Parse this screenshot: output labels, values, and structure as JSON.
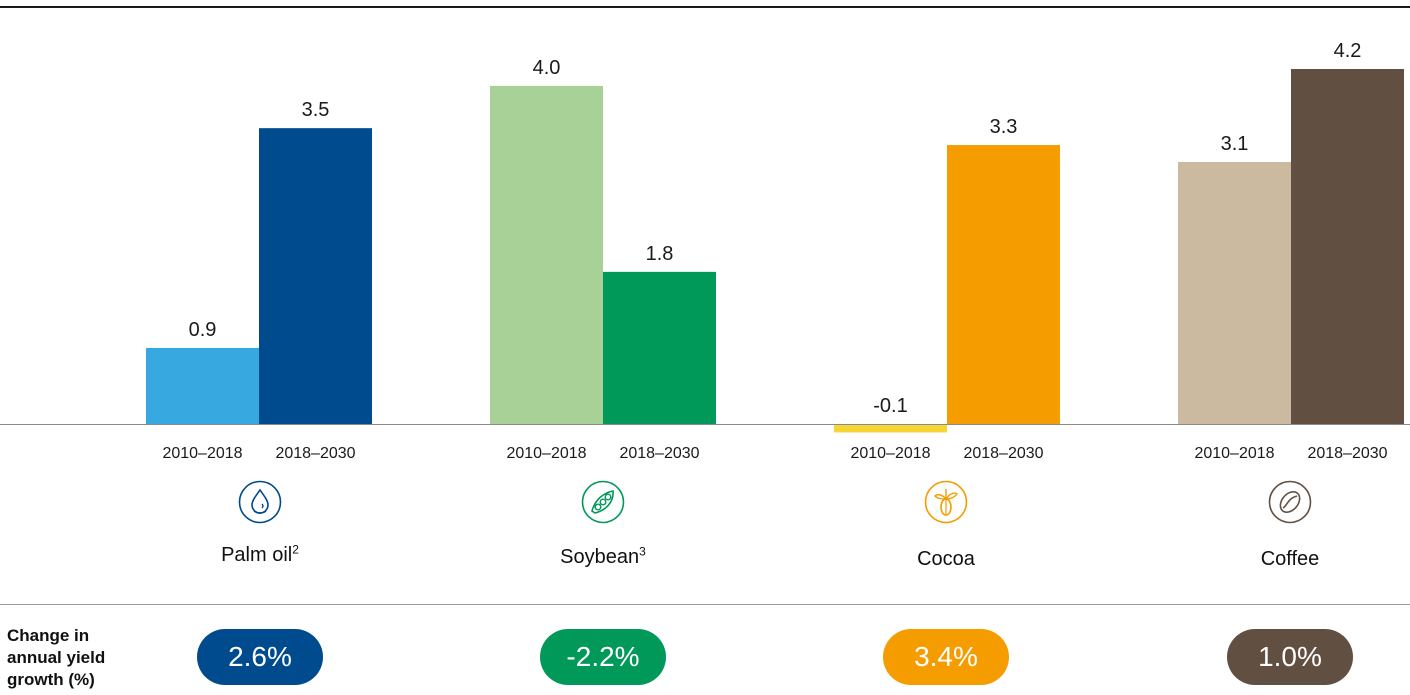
{
  "chart_data": {
    "type": "bar",
    "categories": [
      "Palm oil",
      "Soybean",
      "Cocoa",
      "Coffee"
    ],
    "period_labels": [
      "2010–2018",
      "2018–2030"
    ],
    "groups": [
      {
        "name": "Palm oil",
        "superscript": "2",
        "values": [
          0.9,
          3.5
        ],
        "value_labels": [
          "0.9",
          "3.5"
        ],
        "colors": [
          "#38a9e0",
          "#004b8d"
        ],
        "icon": "palm-oil-drop-icon",
        "icon_color": "#004b8d",
        "change": "2.6%",
        "change_color": "#004b8d"
      },
      {
        "name": "Soybean",
        "superscript": "3",
        "values": [
          4.0,
          1.8
        ],
        "value_labels": [
          "4.0",
          "1.8"
        ],
        "colors": [
          "#a8d198",
          "#00995a"
        ],
        "icon": "soybean-pod-icon",
        "icon_color": "#00995a",
        "change": "-2.2%",
        "change_color": "#00995a"
      },
      {
        "name": "Cocoa",
        "superscript": "",
        "values": [
          -0.1,
          3.3
        ],
        "value_labels": [
          "-0.1",
          "3.3"
        ],
        "colors": [
          "#f5d633",
          "#f59c00"
        ],
        "icon": "cocoa-pod-icon",
        "icon_color": "#f59c00",
        "change": "3.4%",
        "change_color": "#f59c00"
      },
      {
        "name": "Coffee",
        "superscript": "",
        "values": [
          3.1,
          4.2
        ],
        "value_labels": [
          "3.1",
          "4.2"
        ],
        "colors": [
          "#cbb9a0",
          "#614f41"
        ],
        "icon": "coffee-bean-icon",
        "icon_color": "#614f41",
        "change": "1.0%",
        "change_color": "#614f41"
      }
    ],
    "ylim": [
      -0.1,
      4.2
    ],
    "grid": false,
    "legend": "none"
  },
  "footer": {
    "change_label": "Change in annual yield growth (%)"
  }
}
